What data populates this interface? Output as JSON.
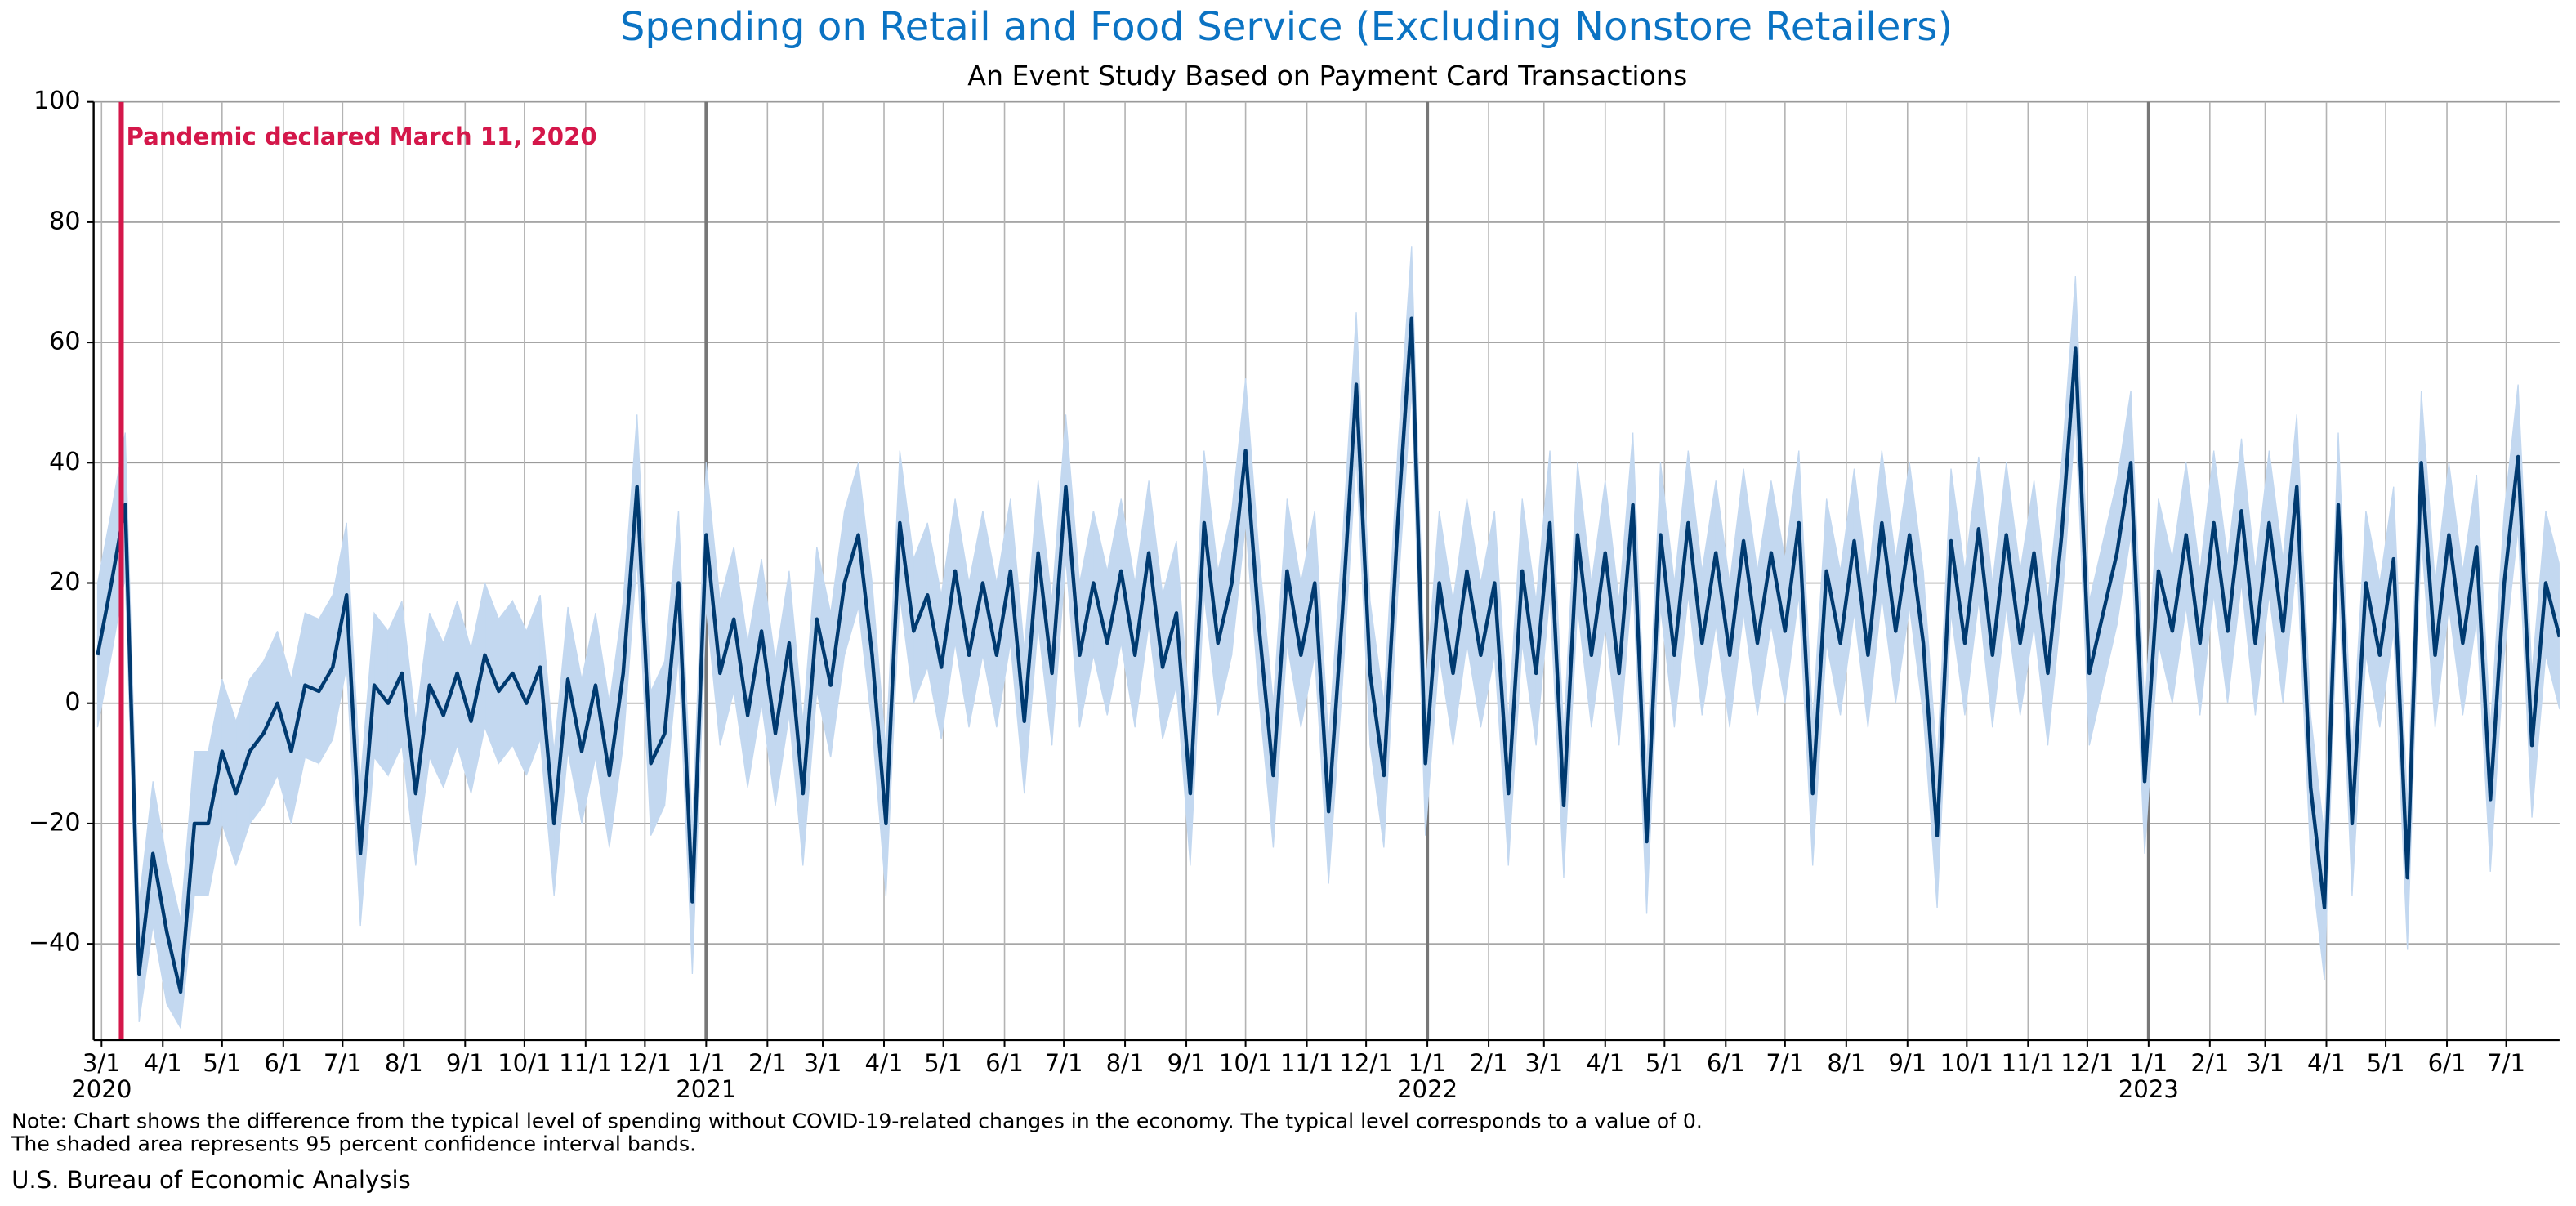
{
  "chart_data": {
    "type": "line",
    "title": "Spending on Retail and Food Service (Excluding Nonstore Retailers)",
    "subtitle": "An Event Study Based on Payment Card Transactions",
    "title_color": "#0b73c3",
    "color": "#003a70",
    "band_color": "#c3d8f0",
    "grid": true,
    "xlim": [
      "2020-02-26",
      "2023-07-28"
    ],
    "ylim": [
      -56,
      100
    ],
    "yticks": [
      {
        "value": -40,
        "label": "−40"
      },
      {
        "value": -20,
        "label": "−20"
      },
      0,
      20,
      40,
      60,
      80,
      100
    ],
    "xticks": [
      {
        "value": "2020-03-01",
        "label": "3/1"
      },
      {
        "value": "2020-04-01",
        "label": "4/1"
      },
      {
        "value": "2020-05-01",
        "label": "5/1"
      },
      {
        "value": "2020-06-01",
        "label": "6/1"
      },
      {
        "value": "2020-07-01",
        "label": "7/1"
      },
      {
        "value": "2020-08-01",
        "label": "8/1"
      },
      {
        "value": "2020-09-01",
        "label": "9/1"
      },
      {
        "value": "2020-10-01",
        "label": "10/1"
      },
      {
        "value": "2020-11-01",
        "label": "11/1"
      },
      {
        "value": "2020-12-01",
        "label": "12/1"
      },
      {
        "value": "2021-01-01",
        "label": "1/1"
      },
      {
        "value": "2021-02-01",
        "label": "2/1"
      },
      {
        "value": "2021-03-01",
        "label": "3/1"
      },
      {
        "value": "2021-04-01",
        "label": "4/1"
      },
      {
        "value": "2021-05-01",
        "label": "5/1"
      },
      {
        "value": "2021-06-01",
        "label": "6/1"
      },
      {
        "value": "2021-07-01",
        "label": "7/1"
      },
      {
        "value": "2021-08-01",
        "label": "8/1"
      },
      {
        "value": "2021-09-01",
        "label": "9/1"
      },
      {
        "value": "2021-10-01",
        "label": "10/1"
      },
      {
        "value": "2021-11-01",
        "label": "11/1"
      },
      {
        "value": "2021-12-01",
        "label": "12/1"
      },
      {
        "value": "2022-01-01",
        "label": "1/1"
      },
      {
        "value": "2022-02-01",
        "label": "2/1"
      },
      {
        "value": "2022-03-01",
        "label": "3/1"
      },
      {
        "value": "2022-04-01",
        "label": "4/1"
      },
      {
        "value": "2022-05-01",
        "label": "5/1"
      },
      {
        "value": "2022-06-01",
        "label": "6/1"
      },
      {
        "value": "2022-07-01",
        "label": "7/1"
      },
      {
        "value": "2022-08-01",
        "label": "8/1"
      },
      {
        "value": "2022-09-01",
        "label": "9/1"
      },
      {
        "value": "2022-10-01",
        "label": "10/1"
      },
      {
        "value": "2022-11-01",
        "label": "11/1"
      },
      {
        "value": "2022-12-01",
        "label": "12/1"
      },
      {
        "value": "2023-01-01",
        "label": "1/1"
      },
      {
        "value": "2023-02-01",
        "label": "2/1"
      },
      {
        "value": "2023-03-01",
        "label": "3/1"
      },
      {
        "value": "2023-04-01",
        "label": "4/1"
      },
      {
        "value": "2023-05-01",
        "label": "5/1"
      },
      {
        "value": "2023-06-01",
        "label": "6/1"
      },
      {
        "value": "2023-07-01",
        "label": "7/1"
      }
    ],
    "year_labels": [
      {
        "value": "2020-03-01",
        "label": "2020"
      },
      {
        "value": "2021-01-01",
        "label": "2021"
      },
      {
        "value": "2022-01-01",
        "label": "2022"
      },
      {
        "value": "2023-01-01",
        "label": "2023"
      }
    ],
    "event": {
      "x": "2020-03-11",
      "label": "Pandemic declared March 11, 2020",
      "color": "#d4174a"
    },
    "x": [
      "2020-02-28",
      "2020-03-06",
      "2020-03-13",
      "2020-03-20",
      "2020-03-27",
      "2020-04-03",
      "2020-04-10",
      "2020-04-17",
      "2020-04-24",
      "2020-05-01",
      "2020-05-08",
      "2020-05-15",
      "2020-05-22",
      "2020-05-29",
      "2020-06-05",
      "2020-06-12",
      "2020-06-19",
      "2020-06-26",
      "2020-07-03",
      "2020-07-10",
      "2020-07-17",
      "2020-07-24",
      "2020-07-31",
      "2020-08-07",
      "2020-08-14",
      "2020-08-21",
      "2020-08-28",
      "2020-09-04",
      "2020-09-11",
      "2020-09-18",
      "2020-09-25",
      "2020-10-02",
      "2020-10-09",
      "2020-10-16",
      "2020-10-23",
      "2020-10-30",
      "2020-11-06",
      "2020-11-13",
      "2020-11-20",
      "2020-11-27",
      "2020-12-04",
      "2020-12-11",
      "2020-12-18",
      "2020-12-25",
      "2021-01-01",
      "2021-01-08",
      "2021-01-15",
      "2021-01-22",
      "2021-01-29",
      "2021-02-05",
      "2021-02-12",
      "2021-02-19",
      "2021-02-26",
      "2021-03-05",
      "2021-03-12",
      "2021-03-19",
      "2021-03-26",
      "2021-04-02",
      "2021-04-09",
      "2021-04-16",
      "2021-04-23",
      "2021-04-30",
      "2021-05-07",
      "2021-05-14",
      "2021-05-21",
      "2021-05-28",
      "2021-06-04",
      "2021-06-11",
      "2021-06-18",
      "2021-06-25",
      "2021-07-02",
      "2021-07-09",
      "2021-07-16",
      "2021-07-23",
      "2021-07-30",
      "2021-08-06",
      "2021-08-13",
      "2021-08-20",
      "2021-08-27",
      "2021-09-03",
      "2021-09-10",
      "2021-09-17",
      "2021-09-24",
      "2021-10-01",
      "2021-10-08",
      "2021-10-15",
      "2021-10-22",
      "2021-10-29",
      "2021-11-05",
      "2021-11-12",
      "2021-11-19",
      "2021-11-26",
      "2021-12-03",
      "2021-12-10",
      "2021-12-17",
      "2021-12-24",
      "2021-12-31",
      "2022-01-07",
      "2022-01-14",
      "2022-01-21",
      "2022-01-28",
      "2022-02-04",
      "2022-02-11",
      "2022-02-18",
      "2022-02-25",
      "2022-03-04",
      "2022-03-11",
      "2022-03-18",
      "2022-03-25",
      "2022-04-01",
      "2022-04-08",
      "2022-04-15",
      "2022-04-22",
      "2022-04-29",
      "2022-05-06",
      "2022-05-13",
      "2022-05-20",
      "2022-05-27",
      "2022-06-03",
      "2022-06-10",
      "2022-06-17",
      "2022-06-24",
      "2022-07-01",
      "2022-07-08",
      "2022-07-15",
      "2022-07-22",
      "2022-07-29",
      "2022-08-05",
      "2022-08-12",
      "2022-08-19",
      "2022-08-26",
      "2022-09-02",
      "2022-09-09",
      "2022-09-16",
      "2022-09-23",
      "2022-09-30",
      "2022-10-07",
      "2022-10-14",
      "2022-10-21",
      "2022-10-28",
      "2022-11-04",
      "2022-11-11",
      "2022-11-18",
      "2022-11-25",
      "2022-12-02",
      "2022-12-09",
      "2022-12-16",
      "2022-12-23",
      "2022-12-30",
      "2023-01-06",
      "2023-01-13",
      "2023-01-20",
      "2023-01-27",
      "2023-02-03",
      "2023-02-10",
      "2023-02-17",
      "2023-02-24",
      "2023-03-03",
      "2023-03-10",
      "2023-03-17",
      "2023-03-24",
      "2023-03-31",
      "2023-04-07",
      "2023-04-14",
      "2023-04-21",
      "2023-04-28",
      "2023-05-05",
      "2023-05-12",
      "2023-05-19",
      "2023-05-26",
      "2023-06-02",
      "2023-06-09",
      "2023-06-16",
      "2023-06-23",
      "2023-06-30",
      "2023-07-07",
      "2023-07-14",
      "2023-07-21",
      "2023-07-28"
    ],
    "values": [
      8,
      20,
      33,
      -45,
      -25,
      -38,
      -48,
      -20,
      -20,
      -8,
      -15,
      -8,
      -5,
      0,
      -8,
      3,
      2,
      6,
      18,
      -25,
      3,
      0,
      5,
      -15,
      3,
      -2,
      5,
      -3,
      8,
      2,
      5,
      0,
      6,
      -20,
      4,
      -8,
      3,
      -12,
      5,
      36,
      -10,
      -5,
      20,
      -33,
      28,
      5,
      14,
      -2,
      12,
      -5,
      10,
      -15,
      14,
      3,
      20,
      28,
      8,
      -20,
      30,
      12,
      18,
      6,
      22,
      8,
      20,
      8,
      22,
      -3,
      25,
      5,
      36,
      8,
      20,
      10,
      22,
      8,
      25,
      6,
      15,
      -15,
      30,
      10,
      20,
      42,
      12,
      -12,
      22,
      8,
      20,
      -18,
      15,
      53,
      5,
      -12,
      30,
      64,
      -10,
      20,
      5,
      22,
      8,
      20,
      -15,
      22,
      5,
      30,
      -17,
      28,
      8,
      25,
      5,
      33,
      -23,
      28,
      8,
      30,
      10,
      25,
      8,
      27,
      10,
      25,
      12,
      30,
      -15,
      22,
      10,
      27,
      8,
      30,
      12,
      28,
      10,
      -22,
      27,
      10,
      29,
      8,
      28,
      10,
      25,
      5,
      28,
      59,
      5,
      15,
      25,
      40,
      -13,
      22,
      12,
      28,
      10,
      30,
      12,
      32,
      10,
      30,
      12,
      36,
      -14,
      -34,
      33,
      -20,
      20,
      8,
      24,
      -29,
      40,
      8,
      28,
      10,
      26,
      -16,
      20,
      41,
      -7,
      20,
      11
    ],
    "band": {
      "upper": [
        20,
        32,
        45,
        -33,
        -13,
        -26,
        -36,
        -8,
        -8,
        4,
        -3,
        4,
        7,
        12,
        4,
        15,
        14,
        18,
        30,
        -13,
        15,
        12,
        17,
        -3,
        15,
        10,
        17,
        9,
        20,
        14,
        17,
        12,
        18,
        -8,
        16,
        4,
        15,
        0,
        17,
        48,
        2,
        7,
        32,
        -21,
        40,
        17,
        26,
        10,
        24,
        7,
        22,
        -3,
        26,
        15,
        32,
        40,
        20,
        -8,
        42,
        24,
        30,
        18,
        34,
        20,
        32,
        20,
        34,
        9,
        37,
        17,
        48,
        20,
        32,
        22,
        34,
        20,
        37,
        18,
        27,
        -3,
        42,
        22,
        32,
        54,
        24,
        0,
        34,
        20,
        32,
        -6,
        27,
        65,
        17,
        0,
        42,
        76,
        2,
        32,
        17,
        34,
        20,
        32,
        -3,
        34,
        17,
        42,
        -5,
        40,
        20,
        37,
        17,
        45,
        -11,
        40,
        20,
        42,
        22,
        37,
        20,
        39,
        22,
        37,
        24,
        42,
        -3,
        34,
        22,
        39,
        20,
        42,
        24,
        40,
        22,
        -10,
        39,
        22,
        41,
        20,
        40,
        22,
        37,
        17,
        40,
        71,
        17,
        27,
        37,
        52,
        -1,
        34,
        24,
        40,
        22,
        42,
        24,
        44,
        22,
        42,
        24,
        48,
        -2,
        -22,
        45,
        -8,
        32,
        20,
        36,
        -17,
        52,
        20,
        40,
        22,
        38,
        -4,
        32,
        53,
        5,
        32,
        23
      ],
      "lower": [
        -4,
        8,
        21,
        -53,
        -37,
        -50,
        -54,
        -32,
        -32,
        -20,
        -27,
        -20,
        -17,
        -12,
        -20,
        -9,
        -10,
        -6,
        6,
        -37,
        -9,
        -12,
        -7,
        -27,
        -9,
        -14,
        -7,
        -15,
        -4,
        -10,
        -7,
        -12,
        -6,
        -32,
        -8,
        -20,
        -9,
        -24,
        -7,
        24,
        -22,
        -17,
        8,
        -45,
        16,
        -7,
        2,
        -14,
        0,
        -17,
        -2,
        -27,
        2,
        -9,
        8,
        16,
        -4,
        -32,
        18,
        0,
        6,
        -6,
        10,
        -4,
        8,
        -4,
        10,
        -15,
        13,
        -7,
        24,
        -4,
        8,
        -2,
        10,
        -4,
        13,
        -6,
        3,
        -27,
        18,
        -2,
        8,
        30,
        0,
        -24,
        10,
        -4,
        8,
        -30,
        3,
        41,
        -7,
        -24,
        18,
        52,
        -22,
        8,
        -7,
        10,
        -4,
        8,
        -27,
        10,
        -7,
        18,
        -29,
        16,
        -4,
        13,
        -7,
        21,
        -35,
        16,
        -4,
        18,
        -2,
        13,
        -4,
        15,
        -2,
        13,
        0,
        18,
        -27,
        10,
        -2,
        15,
        -4,
        18,
        0,
        16,
        -2,
        -34,
        15,
        -2,
        17,
        -4,
        16,
        -2,
        13,
        -7,
        16,
        47,
        -7,
        3,
        13,
        28,
        -25,
        10,
        0,
        16,
        -2,
        18,
        0,
        20,
        -2,
        18,
        0,
        24,
        -26,
        -46,
        21,
        -32,
        8,
        -4,
        12,
        -41,
        28,
        -4,
        16,
        -2,
        14,
        -28,
        8,
        29,
        -19,
        8,
        -1
      ]
    },
    "note": [
      "Note: Chart shows the difference from the typical level of spending without COVID-19-related changes in the economy. The typical level corresponds to a value of 0.",
      "The shaded area represents 95 percent confidence interval bands."
    ],
    "source": "U.S. Bureau of Economic Analysis"
  }
}
